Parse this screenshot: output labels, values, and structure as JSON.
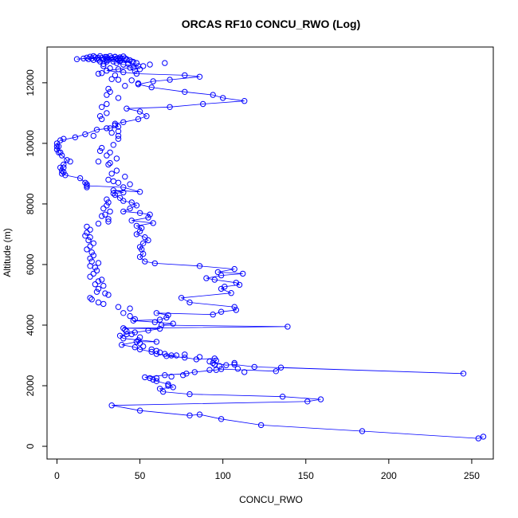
{
  "chart_data": {
    "type": "scatter",
    "title": "ORCAS RF10 CONCU_RWO (Log)",
    "xlabel": "CONCU_RWO",
    "ylabel": "Altitude (m)",
    "xlim": [
      -6,
      263
    ],
    "ylim": [
      -420,
      13180
    ],
    "xticks": [
      0,
      50,
      100,
      150,
      200,
      250
    ],
    "yticks": [
      0,
      2000,
      4000,
      6000,
      8000,
      10000,
      12000
    ],
    "grid": false,
    "legend": "none",
    "color": "#0000ff",
    "series": [
      {
        "connected": true,
        "points": [
          [
            257,
            320
          ],
          [
            254,
            260
          ],
          [
            184,
            500
          ],
          [
            123,
            700
          ],
          [
            99,
            900
          ],
          [
            86,
            1050
          ],
          [
            80,
            1020
          ],
          [
            50,
            1180
          ],
          [
            33,
            1350
          ],
          [
            151,
            1480
          ],
          [
            159,
            1550
          ],
          [
            136,
            1640
          ],
          [
            80,
            1720
          ],
          [
            64,
            1800
          ],
          [
            62,
            1900
          ],
          [
            70,
            1950
          ],
          [
            67,
            2050
          ],
          [
            60,
            2150
          ],
          [
            56,
            2250
          ],
          [
            53,
            2280
          ],
          [
            65,
            2350
          ],
          [
            78,
            2400
          ],
          [
            83,
            2450
          ],
          [
            96,
            2520
          ],
          [
            99,
            2550
          ],
          [
            132,
            2480
          ],
          [
            135,
            2600
          ],
          [
            245,
            2400
          ],
          [
            119,
            2620
          ],
          [
            107,
            2700
          ],
          [
            102,
            2680
          ],
          [
            94,
            2750
          ],
          [
            96,
            2830
          ],
          [
            95,
            2900
          ],
          [
            84,
            2870
          ],
          [
            77,
            2930
          ],
          [
            66,
            2980
          ],
          [
            72,
            3000
          ],
          [
            60,
            3050
          ],
          [
            57,
            3120
          ],
          [
            50,
            3200
          ],
          [
            47,
            3270
          ],
          [
            39,
            3350
          ],
          [
            48,
            3450
          ],
          [
            60,
            3450
          ],
          [
            40,
            3560
          ],
          [
            38,
            3650
          ],
          [
            42,
            3700
          ],
          [
            47,
            3760
          ],
          [
            55,
            3820
          ],
          [
            62,
            3880
          ],
          [
            40,
            3900
          ],
          [
            139,
            3950
          ],
          [
            63,
            4000
          ],
          [
            70,
            4050
          ],
          [
            59,
            4100
          ],
          [
            46,
            4150
          ],
          [
            62,
            4180
          ],
          [
            66,
            4250
          ],
          [
            67,
            4330
          ],
          [
            60,
            4400
          ],
          [
            94,
            4350
          ],
          [
            99,
            4440
          ],
          [
            108,
            4500
          ],
          [
            107,
            4600
          ],
          [
            80,
            4750
          ],
          [
            75,
            4900
          ],
          [
            105,
            5060
          ],
          [
            99,
            5200
          ],
          [
            101,
            5270
          ],
          [
            110,
            5330
          ],
          [
            108,
            5400
          ],
          [
            95,
            5500
          ],
          [
            90,
            5550
          ],
          [
            99,
            5640
          ],
          [
            112,
            5700
          ],
          [
            97,
            5750
          ],
          [
            107,
            5850
          ],
          [
            86,
            5950
          ],
          [
            59,
            6040
          ],
          [
            53,
            6100
          ],
          [
            50,
            6250
          ],
          [
            52,
            6350
          ],
          [
            51,
            6500
          ],
          [
            50,
            6580
          ],
          [
            52,
            6700
          ],
          [
            55,
            6800
          ],
          [
            53,
            6900
          ],
          [
            48,
            7000
          ],
          [
            50,
            7100
          ],
          [
            51,
            7200
          ],
          [
            48,
            7280
          ],
          [
            58,
            7370
          ],
          [
            45,
            7450
          ],
          [
            55,
            7550
          ],
          [
            56,
            7650
          ],
          [
            50,
            7700
          ],
          [
            40,
            7750
          ],
          [
            44,
            7850
          ],
          [
            48,
            7950
          ],
          [
            45,
            8050
          ],
          [
            40,
            8100
          ],
          [
            38,
            8200
          ],
          [
            35,
            8300
          ],
          [
            34,
            8350
          ],
          [
            40,
            8380
          ],
          [
            34,
            8450
          ],
          [
            50,
            8400
          ],
          [
            40,
            8550
          ],
          [
            18,
            8600
          ],
          [
            17,
            8700
          ],
          [
            14,
            8850
          ],
          [
            5,
            8950
          ],
          [
            4,
            9050
          ],
          [
            2,
            9200
          ],
          [
            4,
            9300
          ],
          [
            6,
            9450
          ],
          [
            3,
            9600
          ],
          [
            1,
            9700
          ],
          [
            0,
            9800
          ],
          [
            1,
            9900
          ],
          [
            0,
            10000
          ],
          [
            2,
            10100
          ],
          [
            11,
            10200
          ],
          [
            17,
            10300
          ],
          [
            24,
            10450
          ],
          [
            32,
            10500
          ],
          [
            37,
            10550
          ],
          [
            35,
            10650
          ],
          [
            40,
            10700
          ],
          [
            49,
            10800
          ],
          [
            54,
            10900
          ],
          [
            50,
            11050
          ],
          [
            42,
            11150
          ],
          [
            68,
            11200
          ],
          [
            88,
            11300
          ],
          [
            113,
            11400
          ],
          [
            100,
            11500
          ],
          [
            94,
            11600
          ],
          [
            77,
            11700
          ],
          [
            57,
            11850
          ],
          [
            49,
            11950
          ],
          [
            58,
            12050
          ],
          [
            68,
            12100
          ],
          [
            86,
            12200
          ],
          [
            77,
            12250
          ],
          [
            48,
            12300
          ],
          [
            40,
            12350
          ],
          [
            30,
            12400
          ],
          [
            37,
            12450
          ],
          [
            44,
            12500
          ],
          [
            49,
            12550
          ],
          [
            40,
            12600
          ],
          [
            36,
            12650
          ],
          [
            45,
            12700
          ],
          [
            30,
            12750
          ],
          [
            38,
            12800
          ],
          [
            30,
            12850
          ],
          [
            12,
            12780
          ],
          [
            25,
            12820
          ],
          [
            35,
            12860
          ],
          [
            42,
            12780
          ]
        ]
      },
      {
        "connected": false,
        "points": [
          [
            16,
            12800
          ],
          [
            18,
            12830
          ],
          [
            19,
            12780
          ],
          [
            20,
            12860
          ],
          [
            21,
            12800
          ],
          [
            22,
            12750
          ],
          [
            23,
            12840
          ],
          [
            24,
            12790
          ],
          [
            25,
            12760
          ],
          [
            26,
            12880
          ],
          [
            27,
            12820
          ],
          [
            28,
            12770
          ],
          [
            29,
            12850
          ],
          [
            30,
            12800
          ],
          [
            31,
            12760
          ],
          [
            32,
            12880
          ],
          [
            33,
            12820
          ],
          [
            34,
            12780
          ],
          [
            35,
            12850
          ],
          [
            36,
            12800
          ],
          [
            37,
            12760
          ],
          [
            38,
            12840
          ],
          [
            39,
            12790
          ],
          [
            40,
            12870
          ],
          [
            41,
            12810
          ],
          [
            42,
            12760
          ],
          [
            22,
            12880
          ],
          [
            26,
            12700
          ],
          [
            30,
            12700
          ],
          [
            34,
            12700
          ],
          [
            38,
            12720
          ],
          [
            44,
            12740
          ],
          [
            46,
            12690
          ],
          [
            48,
            12650
          ],
          [
            43,
            12620
          ],
          [
            28,
            12620
          ],
          [
            25,
            12300
          ],
          [
            27,
            12320
          ],
          [
            35,
            12250
          ],
          [
            47,
            12400
          ],
          [
            46,
            12500
          ],
          [
            50,
            12450
          ],
          [
            52,
            12550
          ],
          [
            56,
            12600
          ],
          [
            65,
            12650
          ],
          [
            28,
            12550
          ],
          [
            32,
            12480
          ],
          [
            33,
            12120
          ],
          [
            37,
            12100
          ],
          [
            45,
            12080
          ],
          [
            49,
            11980
          ],
          [
            41,
            11900
          ],
          [
            31,
            11800
          ],
          [
            32,
            11700
          ],
          [
            30,
            11600
          ],
          [
            37,
            11500
          ],
          [
            30,
            11300
          ],
          [
            27,
            11200
          ],
          [
            30,
            11000
          ],
          [
            26,
            10900
          ],
          [
            27,
            10800
          ],
          [
            35,
            10600
          ],
          [
            30,
            10500
          ],
          [
            37,
            10400
          ],
          [
            33,
            10350
          ],
          [
            22,
            10250
          ],
          [
            37,
            10250
          ],
          [
            37,
            10150
          ],
          [
            34,
            9950
          ],
          [
            27,
            9850
          ],
          [
            26,
            9750
          ],
          [
            32,
            9700
          ],
          [
            30,
            9600
          ],
          [
            36,
            9500
          ],
          [
            25,
            9400
          ],
          [
            32,
            9350
          ],
          [
            31,
            9300
          ],
          [
            36,
            9100
          ],
          [
            33,
            9000
          ],
          [
            41,
            8900
          ],
          [
            31,
            8800
          ],
          [
            34,
            8750
          ],
          [
            37,
            8700
          ],
          [
            44,
            8650
          ],
          [
            18,
            8550
          ],
          [
            18,
            8650
          ],
          [
            3,
            9000
          ],
          [
            3,
            9100
          ],
          [
            4,
            9200
          ],
          [
            8,
            9400
          ],
          [
            2,
            9700
          ],
          [
            0,
            9900
          ],
          [
            4,
            10150
          ],
          [
            30,
            8150
          ],
          [
            31,
            8050
          ],
          [
            30,
            7950
          ],
          [
            28,
            7850
          ],
          [
            32,
            7750
          ],
          [
            29,
            7650
          ],
          [
            27,
            7600
          ],
          [
            31,
            7500
          ],
          [
            31,
            7420
          ],
          [
            25,
            7350
          ],
          [
            18,
            7250
          ],
          [
            20,
            7150
          ],
          [
            18,
            7050
          ],
          [
            17,
            6950
          ],
          [
            20,
            6900
          ],
          [
            19,
            6800
          ],
          [
            22,
            6700
          ],
          [
            20,
            6600
          ],
          [
            18,
            6500
          ],
          [
            21,
            6400
          ],
          [
            22,
            6300
          ],
          [
            20,
            6200
          ],
          [
            21,
            6100
          ],
          [
            25,
            6050
          ],
          [
            20,
            5950
          ],
          [
            23,
            5900
          ],
          [
            24,
            5800
          ],
          [
            22,
            5700
          ],
          [
            20,
            5600
          ],
          [
            27,
            5500
          ],
          [
            25,
            5450
          ],
          [
            23,
            5350
          ],
          [
            28,
            5300
          ],
          [
            25,
            5200
          ],
          [
            24,
            5100
          ],
          [
            29,
            5050
          ],
          [
            31,
            5000
          ],
          [
            20,
            4900
          ],
          [
            21,
            4850
          ],
          [
            25,
            4750
          ],
          [
            28,
            4700
          ],
          [
            37,
            4600
          ],
          [
            44,
            4550
          ],
          [
            40,
            4400
          ],
          [
            44,
            4300
          ],
          [
            47,
            4200
          ],
          [
            41,
            3850
          ],
          [
            42,
            3800
          ],
          [
            45,
            3700
          ],
          [
            50,
            3600
          ],
          [
            49,
            3500
          ],
          [
            50,
            3400
          ],
          [
            52,
            3300
          ],
          [
            57,
            3200
          ],
          [
            60,
            3150
          ],
          [
            62,
            3100
          ],
          [
            65,
            3050
          ],
          [
            69,
            3000
          ],
          [
            77,
            3030
          ],
          [
            86,
            2950
          ],
          [
            92,
            2800
          ],
          [
            95,
            2700
          ],
          [
            98,
            2650
          ],
          [
            107,
            2750
          ],
          [
            109,
            2560
          ],
          [
            113,
            2450
          ],
          [
            92,
            2520
          ],
          [
            76,
            2350
          ],
          [
            69,
            2300
          ],
          [
            60,
            2250
          ],
          [
            58,
            2200
          ],
          [
            67,
            2000
          ]
        ]
      }
    ]
  }
}
